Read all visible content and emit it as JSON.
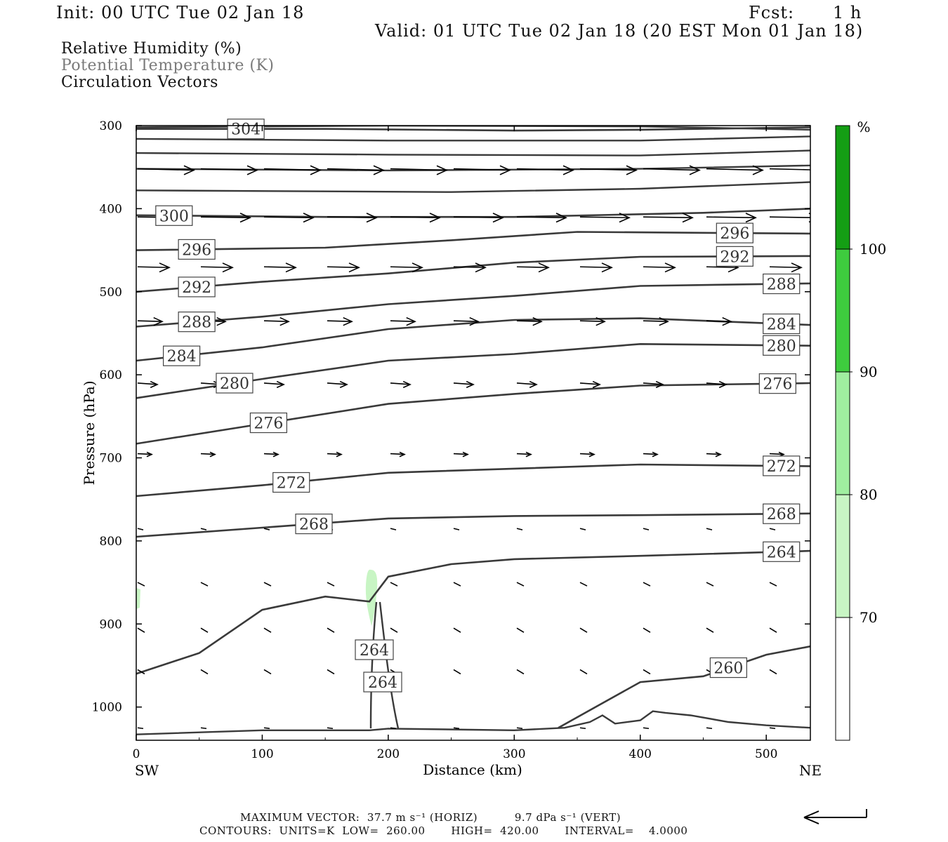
{
  "header": {
    "init": "Init: 00 UTC Tue 02 Jan 18",
    "fcst_label": "Fcst:",
    "fcst_value": "1 h",
    "valid": "Valid: 01 UTC Tue 02 Jan 18 (20 EST Mon 01 Jan 18)"
  },
  "legend": {
    "line1": "Relative Humidity (%)",
    "line2": "Potential Temperature (K)",
    "line3": "Circulation Vectors"
  },
  "colors": {
    "frame": "#000000",
    "contour": "#3a3a3a",
    "rh_70": "#c8f5c4",
    "rh_80": "#a0eea0",
    "rh_90": "#3ecc3e",
    "rh_100": "#149e14",
    "rh_max": "#0c7a0c"
  },
  "chart_data": {
    "type": "contour",
    "xlabel": "Distance (km)",
    "ylabel": "Pressure (hPa)",
    "x_ticks": [
      0,
      100,
      200,
      300,
      400,
      500
    ],
    "y_ticks": [
      300,
      400,
      500,
      600,
      700,
      800,
      900,
      1000
    ],
    "xlim": [
      0,
      535
    ],
    "ylim": [
      1040,
      300
    ],
    "left_end_label": "SW",
    "right_end_label": "NE",
    "colorbar": {
      "unit": "%",
      "levels": [
        70,
        80,
        90,
        100
      ],
      "colors": [
        "#ffffff",
        "#c8f5c4",
        "#a0eea0",
        "#3ecc3e",
        "#149e14",
        "#0c7a0c"
      ]
    },
    "theta_contours": [
      {
        "label": "304",
        "points": [
          [
            0,
            304
          ],
          [
            150,
            304
          ],
          [
            300,
            306
          ],
          [
            400,
            305
          ],
          [
            535,
            302
          ]
        ]
      },
      {
        "label": "300",
        "points": [
          [
            0,
            408
          ],
          [
            150,
            410
          ],
          [
            300,
            410
          ],
          [
            450,
            405
          ],
          [
            535,
            400
          ]
        ]
      },
      {
        "label": "296",
        "points": [
          [
            0,
            450
          ],
          [
            150,
            447
          ],
          [
            250,
            438
          ],
          [
            350,
            428
          ],
          [
            535,
            430
          ]
        ]
      },
      {
        "label": "292",
        "points": [
          [
            0,
            500
          ],
          [
            100,
            488
          ],
          [
            200,
            478
          ],
          [
            300,
            465
          ],
          [
            400,
            458
          ],
          [
            535,
            457
          ]
        ]
      },
      {
        "label": "288",
        "points": [
          [
            0,
            542
          ],
          [
            100,
            530
          ],
          [
            200,
            515
          ],
          [
            300,
            505
          ],
          [
            400,
            493
          ],
          [
            535,
            490
          ]
        ]
      },
      {
        "label": "284",
        "points": [
          [
            0,
            583
          ],
          [
            100,
            567
          ],
          [
            200,
            545
          ],
          [
            300,
            534
          ],
          [
            400,
            532
          ],
          [
            535,
            540
          ]
        ]
      },
      {
        "label": "280",
        "points": [
          [
            0,
            628
          ],
          [
            100,
            605
          ],
          [
            200,
            583
          ],
          [
            300,
            575
          ],
          [
            400,
            563
          ],
          [
            535,
            565
          ]
        ]
      },
      {
        "label": "276",
        "points": [
          [
            0,
            683
          ],
          [
            100,
            659
          ],
          [
            200,
            635
          ],
          [
            300,
            623
          ],
          [
            400,
            613
          ],
          [
            535,
            610
          ]
        ]
      },
      {
        "label": "272",
        "points": [
          [
            0,
            746
          ],
          [
            100,
            733
          ],
          [
            200,
            718
          ],
          [
            300,
            713
          ],
          [
            400,
            708
          ],
          [
            535,
            710
          ]
        ]
      },
      {
        "label": "268",
        "points": [
          [
            0,
            795
          ],
          [
            100,
            784
          ],
          [
            200,
            773
          ],
          [
            300,
            770
          ],
          [
            400,
            769
          ],
          [
            535,
            767
          ]
        ]
      },
      {
        "label": "264",
        "points": [
          [
            0,
            960
          ],
          [
            50,
            935
          ],
          [
            100,
            883
          ],
          [
            150,
            867
          ],
          [
            185,
            873
          ],
          [
            200,
            843
          ],
          [
            250,
            828
          ],
          [
            300,
            822
          ],
          [
            400,
            818
          ],
          [
            535,
            812
          ]
        ]
      },
      {
        "label": "260",
        "points": [
          [
            335,
            1025
          ],
          [
            400,
            970
          ],
          [
            450,
            963
          ],
          [
            500,
            937
          ],
          [
            535,
            927
          ]
        ]
      }
    ],
    "contour_info": {
      "units": "K",
      "low": "260.00",
      "high": "420.00",
      "interval": "4.0000"
    },
    "max_vector": {
      "horiz_value": "37.7",
      "horiz_units": "m s-1",
      "vert_value": "9.7",
      "vert_units": "dPa s-1"
    }
  },
  "labels": {
    "axis_x": "Distance (km)",
    "axis_y": "Pressure (hPa)",
    "sw": "SW",
    "ne": "NE",
    "cb_unit": "%",
    "footer_line1": "MAXIMUM VECTOR:  37.7 m s⁻¹ (HORIZ)          9.7 dPa s⁻¹ (VERT)",
    "footer_line2": "CONTOURS:  UNITS=K  LOW=  260.00       HIGH=  420.00       INTERVAL=    4.0000"
  }
}
